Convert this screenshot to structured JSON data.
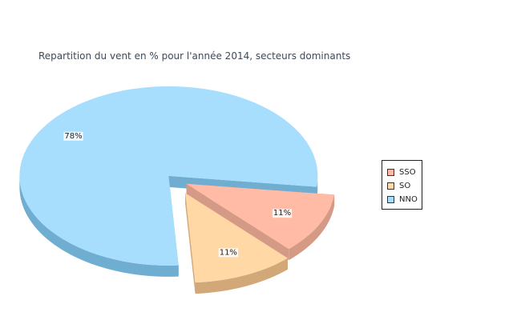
{
  "chart_data": {
    "type": "pie",
    "title": "Repartition du vent en % pour l'année 2014, secteurs dominants",
    "slices": [
      {
        "name": "SSO",
        "value": 11,
        "label": "11%",
        "color": "#ffbba5",
        "side_color": "#d49a86"
      },
      {
        "name": "SO",
        "value": 11,
        "label": "11%",
        "color": "#ffd8a6",
        "side_color": "#d2a878"
      },
      {
        "name": "NNO",
        "value": 78,
        "label": "78%",
        "color": "#a7ddfd",
        "side_color": "#6faed0"
      }
    ],
    "exploded": true,
    "three_d": true,
    "legend_position": "right"
  },
  "legend": {
    "items": [
      {
        "name": "SSO",
        "color": "#ffbba5"
      },
      {
        "name": "SO",
        "color": "#ffd8a6"
      },
      {
        "name": "NNO",
        "color": "#a7ddfd"
      }
    ]
  }
}
